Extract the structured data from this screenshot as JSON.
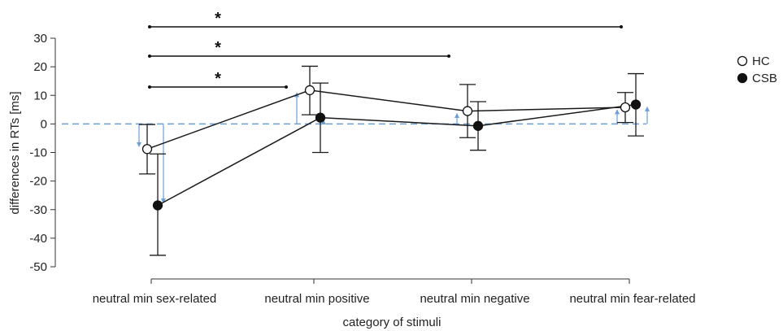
{
  "chart_data": {
    "type": "line",
    "xlabel": "category of stimuli",
    "ylabel": "differences in RTs [ms]",
    "ylim": [
      -50,
      30
    ],
    "yticks": [
      30,
      20,
      10,
      0,
      -10,
      -20,
      -30,
      -40,
      -50
    ],
    "categories": [
      "neutral min sex-related",
      "neutral min positive",
      "neutral min negative",
      "neutral min fear-related"
    ],
    "series": [
      {
        "name": "HC",
        "marker": "open-circle",
        "values": [
          -8.8,
          11.8,
          4.5,
          5.8
        ],
        "error_low": [
          -17.5,
          3.2,
          -4.8,
          0.5
        ],
        "error_high": [
          -0.2,
          20.2,
          13.8,
          11.0
        ]
      },
      {
        "name": "CSB",
        "marker": "filled-circle",
        "values": [
          -28.5,
          2.2,
          -0.7,
          6.8
        ],
        "error_low": [
          -46.0,
          -10.0,
          -9.2,
          -4.2
        ],
        "error_high": [
          -10.5,
          14.3,
          7.8,
          17.6
        ]
      }
    ],
    "baseline": {
      "value": 0,
      "style": "dashed",
      "color": "#6a9fd8"
    },
    "significance": [
      {
        "from": 0,
        "to": 1,
        "label": "*"
      },
      {
        "from": 0,
        "to": 2,
        "label": "*"
      },
      {
        "from": 0,
        "to": 3,
        "label": "*"
      }
    ],
    "legend": {
      "position": "right",
      "entries": [
        "HC",
        "CSB"
      ]
    },
    "colors": {
      "line": "#1a1a1a",
      "hc_fill": "#ffffff",
      "csb_fill": "#111111",
      "arrow": "#6a9fd8"
    }
  }
}
